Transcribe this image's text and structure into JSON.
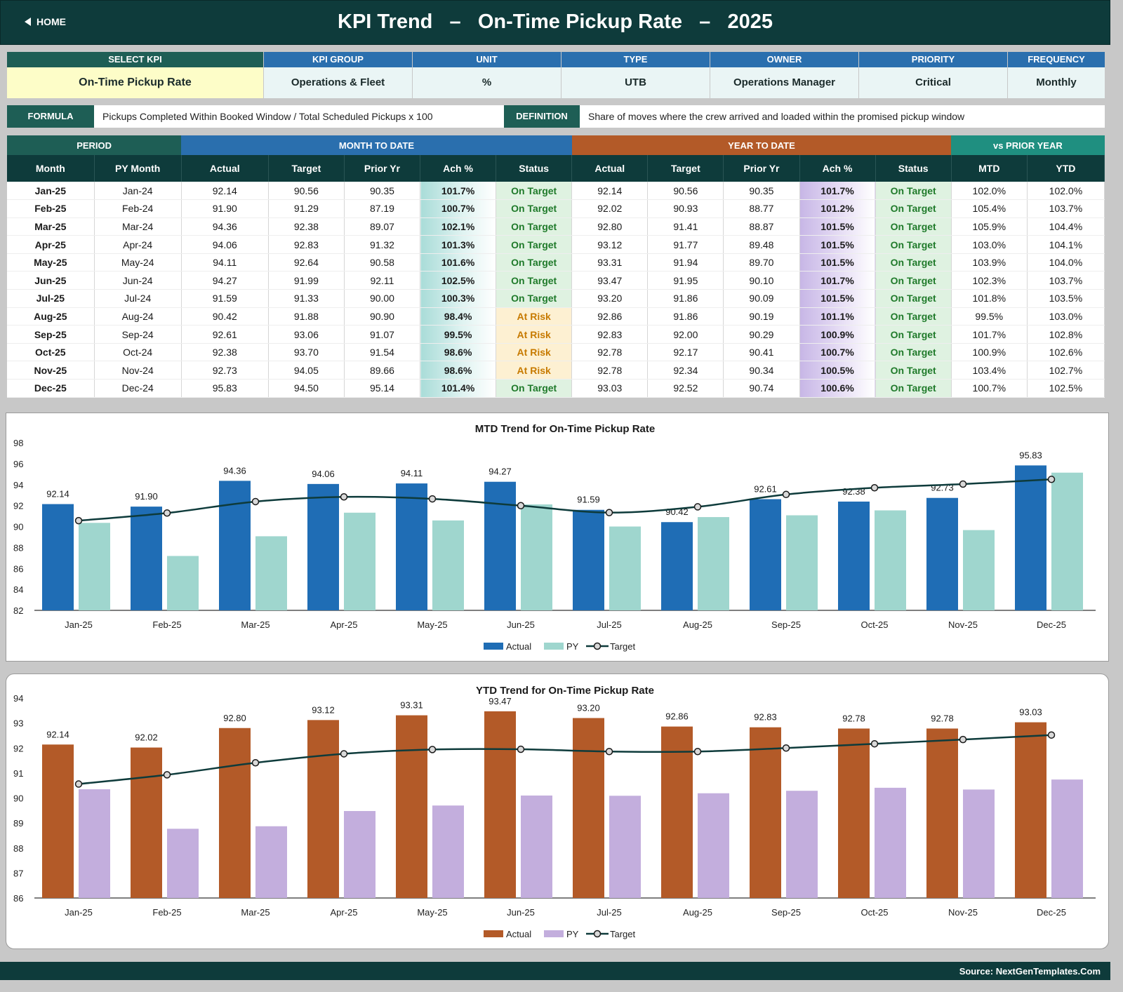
{
  "header": {
    "home_label": "HOME",
    "title": "KPI Trend   –   On-Time Pickup Rate   –   2025"
  },
  "kpi_info": [
    {
      "label": "SELECT KPI",
      "value": "On-Time Pickup Rate"
    },
    {
      "label": "KPI GROUP",
      "value": "Operations & Fleet"
    },
    {
      "label": "UNIT",
      "value": "%"
    },
    {
      "label": "TYPE",
      "value": "UTB"
    },
    {
      "label": "OWNER",
      "value": "Operations Manager"
    },
    {
      "label": "PRIORITY",
      "value": "Critical"
    },
    {
      "label": "FREQUENCY",
      "value": "Monthly"
    }
  ],
  "formula": {
    "label": "FORMULA",
    "text": "Pickups Completed Within Booked Window / Total Scheduled Pickups x 100",
    "definition_label": "DEFINITION",
    "definition_text": "Share of moves where the crew arrived and loaded within the promised pickup window"
  },
  "table": {
    "bands": {
      "period": "PERIOD",
      "mtd": "MONTH TO DATE",
      "ytd": "YEAR TO DATE",
      "vs": "vs PRIOR YEAR"
    },
    "columns": [
      "Month",
      "PY Month",
      "Actual",
      "Target",
      "Prior Yr",
      "Ach %",
      "Status",
      "Actual",
      "Target",
      "Prior Yr",
      "Ach %",
      "Status",
      "MTD",
      "YTD"
    ],
    "rows": [
      {
        "month": "Jan-25",
        "py_month": "Jan-24",
        "mtd_actual": "92.14",
        "mtd_target": "90.56",
        "mtd_prior": "90.35",
        "mtd_ach": "101.7%",
        "mtd_status": "On Target",
        "ytd_actual": "92.14",
        "ytd_target": "90.56",
        "ytd_prior": "90.35",
        "ytd_ach": "101.7%",
        "ytd_status": "On Target",
        "vs_mtd": "102.0%",
        "vs_ytd": "102.0%"
      },
      {
        "month": "Feb-25",
        "py_month": "Feb-24",
        "mtd_actual": "91.90",
        "mtd_target": "91.29",
        "mtd_prior": "87.19",
        "mtd_ach": "100.7%",
        "mtd_status": "On Target",
        "ytd_actual": "92.02",
        "ytd_target": "90.93",
        "ytd_prior": "88.77",
        "ytd_ach": "101.2%",
        "ytd_status": "On Target",
        "vs_mtd": "105.4%",
        "vs_ytd": "103.7%"
      },
      {
        "month": "Mar-25",
        "py_month": "Mar-24",
        "mtd_actual": "94.36",
        "mtd_target": "92.38",
        "mtd_prior": "89.07",
        "mtd_ach": "102.1%",
        "mtd_status": "On Target",
        "ytd_actual": "92.80",
        "ytd_target": "91.41",
        "ytd_prior": "88.87",
        "ytd_ach": "101.5%",
        "ytd_status": "On Target",
        "vs_mtd": "105.9%",
        "vs_ytd": "104.4%"
      },
      {
        "month": "Apr-25",
        "py_month": "Apr-24",
        "mtd_actual": "94.06",
        "mtd_target": "92.83",
        "mtd_prior": "91.32",
        "mtd_ach": "101.3%",
        "mtd_status": "On Target",
        "ytd_actual": "93.12",
        "ytd_target": "91.77",
        "ytd_prior": "89.48",
        "ytd_ach": "101.5%",
        "ytd_status": "On Target",
        "vs_mtd": "103.0%",
        "vs_ytd": "104.1%"
      },
      {
        "month": "May-25",
        "py_month": "May-24",
        "mtd_actual": "94.11",
        "mtd_target": "92.64",
        "mtd_prior": "90.58",
        "mtd_ach": "101.6%",
        "mtd_status": "On Target",
        "ytd_actual": "93.31",
        "ytd_target": "91.94",
        "ytd_prior": "89.70",
        "ytd_ach": "101.5%",
        "ytd_status": "On Target",
        "vs_mtd": "103.9%",
        "vs_ytd": "104.0%"
      },
      {
        "month": "Jun-25",
        "py_month": "Jun-24",
        "mtd_actual": "94.27",
        "mtd_target": "91.99",
        "mtd_prior": "92.11",
        "mtd_ach": "102.5%",
        "mtd_status": "On Target",
        "ytd_actual": "93.47",
        "ytd_target": "91.95",
        "ytd_prior": "90.10",
        "ytd_ach": "101.7%",
        "ytd_status": "On Target",
        "vs_mtd": "102.3%",
        "vs_ytd": "103.7%"
      },
      {
        "month": "Jul-25",
        "py_month": "Jul-24",
        "mtd_actual": "91.59",
        "mtd_target": "91.33",
        "mtd_prior": "90.00",
        "mtd_ach": "100.3%",
        "mtd_status": "On Target",
        "ytd_actual": "93.20",
        "ytd_target": "91.86",
        "ytd_prior": "90.09",
        "ytd_ach": "101.5%",
        "ytd_status": "On Target",
        "vs_mtd": "101.8%",
        "vs_ytd": "103.5%"
      },
      {
        "month": "Aug-25",
        "py_month": "Aug-24",
        "mtd_actual": "90.42",
        "mtd_target": "91.88",
        "mtd_prior": "90.90",
        "mtd_ach": "98.4%",
        "mtd_status": "At Risk",
        "ytd_actual": "92.86",
        "ytd_target": "91.86",
        "ytd_prior": "90.19",
        "ytd_ach": "101.1%",
        "ytd_status": "On Target",
        "vs_mtd": "99.5%",
        "vs_ytd": "103.0%"
      },
      {
        "month": "Sep-25",
        "py_month": "Sep-24",
        "mtd_actual": "92.61",
        "mtd_target": "93.06",
        "mtd_prior": "91.07",
        "mtd_ach": "99.5%",
        "mtd_status": "At Risk",
        "ytd_actual": "92.83",
        "ytd_target": "92.00",
        "ytd_prior": "90.29",
        "ytd_ach": "100.9%",
        "ytd_status": "On Target",
        "vs_mtd": "101.7%",
        "vs_ytd": "102.8%"
      },
      {
        "month": "Oct-25",
        "py_month": "Oct-24",
        "mtd_actual": "92.38",
        "mtd_target": "93.70",
        "mtd_prior": "91.54",
        "mtd_ach": "98.6%",
        "mtd_status": "At Risk",
        "ytd_actual": "92.78",
        "ytd_target": "92.17",
        "ytd_prior": "90.41",
        "ytd_ach": "100.7%",
        "ytd_status": "On Target",
        "vs_mtd": "100.9%",
        "vs_ytd": "102.6%"
      },
      {
        "month": "Nov-25",
        "py_month": "Nov-24",
        "mtd_actual": "92.73",
        "mtd_target": "94.05",
        "mtd_prior": "89.66",
        "mtd_ach": "98.6%",
        "mtd_status": "At Risk",
        "ytd_actual": "92.78",
        "ytd_target": "92.34",
        "ytd_prior": "90.34",
        "ytd_ach": "100.5%",
        "ytd_status": "On Target",
        "vs_mtd": "103.4%",
        "vs_ytd": "102.7%"
      },
      {
        "month": "Dec-25",
        "py_month": "Dec-24",
        "mtd_actual": "95.83",
        "mtd_target": "94.50",
        "mtd_prior": "95.14",
        "mtd_ach": "101.4%",
        "mtd_status": "On Target",
        "ytd_actual": "93.03",
        "ytd_target": "92.52",
        "ytd_prior": "90.74",
        "ytd_ach": "100.6%",
        "ytd_status": "On Target",
        "vs_mtd": "100.7%",
        "vs_ytd": "102.5%"
      }
    ]
  },
  "colors": {
    "header_bg": "#0e3b3b",
    "mtd_actual": "#1f6db5",
    "mtd_py": "#9fd6ce",
    "ytd_actual": "#b35a28",
    "ytd_py": "#c3aedd",
    "target_line": "#0e3b3b",
    "on_target": "#1f7a2a",
    "at_risk": "#c77a00"
  },
  "chart_data": [
    {
      "id": "mtd",
      "type": "bar",
      "title": "MTD Trend for On-Time Pickup Rate",
      "categories": [
        "Jan-25",
        "Feb-25",
        "Mar-25",
        "Apr-25",
        "May-25",
        "Jun-25",
        "Jul-25",
        "Aug-25",
        "Sep-25",
        "Oct-25",
        "Nov-25",
        "Dec-25"
      ],
      "series": [
        {
          "name": "Actual",
          "kind": "bar",
          "values": [
            92.14,
            91.9,
            94.36,
            94.06,
            94.11,
            94.27,
            91.59,
            90.42,
            92.61,
            92.38,
            92.73,
            95.83
          ]
        },
        {
          "name": "PY",
          "kind": "bar",
          "values": [
            90.35,
            87.19,
            89.07,
            91.32,
            90.58,
            92.11,
            90.0,
            90.9,
            91.07,
            91.54,
            89.66,
            95.14
          ]
        },
        {
          "name": "Target",
          "kind": "line",
          "values": [
            90.56,
            91.29,
            92.38,
            92.83,
            92.64,
            91.99,
            91.33,
            91.88,
            93.06,
            93.7,
            94.05,
            94.5
          ]
        }
      ],
      "data_labels": [
        "92.14",
        "91.90",
        "94.36",
        "94.06",
        "94.11",
        "94.27",
        "91.59",
        "90.42",
        "92.61",
        "92.38",
        "92.73",
        "95.83"
      ],
      "yticks": [
        "82",
        "84",
        "86",
        "88",
        "90",
        "92",
        "94",
        "96",
        "98"
      ],
      "ylim": [
        82,
        98
      ],
      "legend": "bottom",
      "grid": false
    },
    {
      "id": "ytd",
      "type": "bar",
      "title": "YTD Trend for On-Time Pickup Rate",
      "categories": [
        "Jan-25",
        "Feb-25",
        "Mar-25",
        "Apr-25",
        "May-25",
        "Jun-25",
        "Jul-25",
        "Aug-25",
        "Sep-25",
        "Oct-25",
        "Nov-25",
        "Dec-25"
      ],
      "series": [
        {
          "name": "Actual",
          "kind": "bar",
          "values": [
            92.14,
            92.02,
            92.8,
            93.12,
            93.31,
            93.47,
            93.2,
            92.86,
            92.83,
            92.78,
            92.78,
            93.03
          ]
        },
        {
          "name": "PY",
          "kind": "bar",
          "values": [
            90.35,
            88.77,
            88.87,
            89.48,
            89.7,
            90.1,
            90.09,
            90.19,
            90.29,
            90.41,
            90.34,
            90.74
          ]
        },
        {
          "name": "Target",
          "kind": "line",
          "values": [
            90.56,
            90.93,
            91.41,
            91.77,
            91.94,
            91.95,
            91.86,
            91.86,
            92.0,
            92.17,
            92.34,
            92.52
          ]
        }
      ],
      "data_labels": [
        "92.14",
        "92.02",
        "92.80",
        "93.12",
        "93.31",
        "93.47",
        "93.20",
        "92.86",
        "92.83",
        "92.78",
        "92.78",
        "93.03"
      ],
      "yticks": [
        "86",
        "87",
        "88",
        "89",
        "90",
        "91",
        "92",
        "93",
        "94"
      ],
      "ylim": [
        86,
        94
      ],
      "legend": "bottom",
      "grid": false
    }
  ],
  "footer": {
    "source": "Source: NextGenTemplates.Com"
  }
}
